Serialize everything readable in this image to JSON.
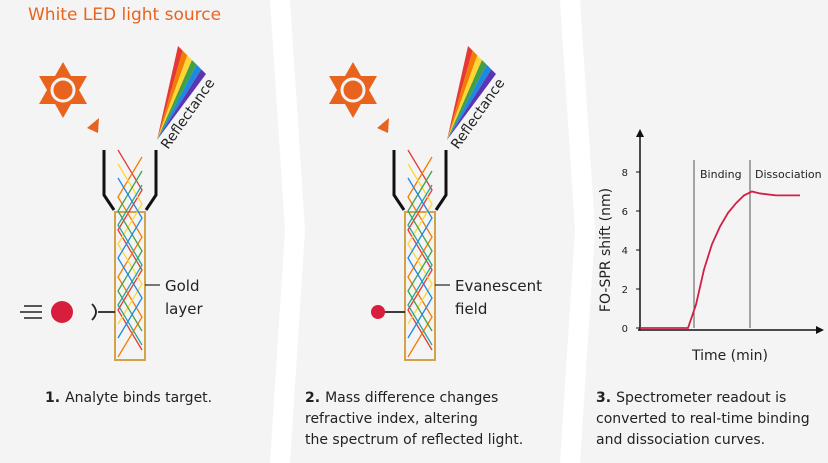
{
  "header": {
    "title": "White LED light source"
  },
  "panels": [
    {
      "reflectance": "Reflectance",
      "fiber_label": [
        "Gold",
        "layer"
      ],
      "caption": {
        "number": "1.",
        "lines": [
          "Analyte binds target."
        ]
      }
    },
    {
      "reflectance": "Reflectance",
      "fiber_label": [
        "Evanescent",
        "field"
      ],
      "caption": {
        "number": "2.",
        "lines": [
          "Mass difference changes",
          "refractive index, altering",
          "the spectrum of reflected light."
        ]
      }
    },
    {
      "chart": {
        "type": "line",
        "y_label": "FO-SPR shift (nm)",
        "x_label": "Time (min)",
        "phases": [
          "Binding",
          "Dissociation"
        ],
        "ylim": [
          0,
          10
        ],
        "yticks": [
          0,
          2,
          4,
          6,
          8
        ],
        "color": "#d21f45",
        "values": [
          0,
          0,
          0,
          0,
          0,
          0,
          0,
          1.2,
          3.0,
          4.3,
          5.2,
          5.9,
          6.4,
          6.8,
          7.0,
          6.9,
          6.85,
          6.8,
          6.8,
          6.8,
          6.8
        ]
      },
      "caption": {
        "number": "3.",
        "lines": [
          "Spectrometer readout is",
          "converted to real-time binding",
          "and dissociation curves."
        ]
      }
    }
  ]
}
